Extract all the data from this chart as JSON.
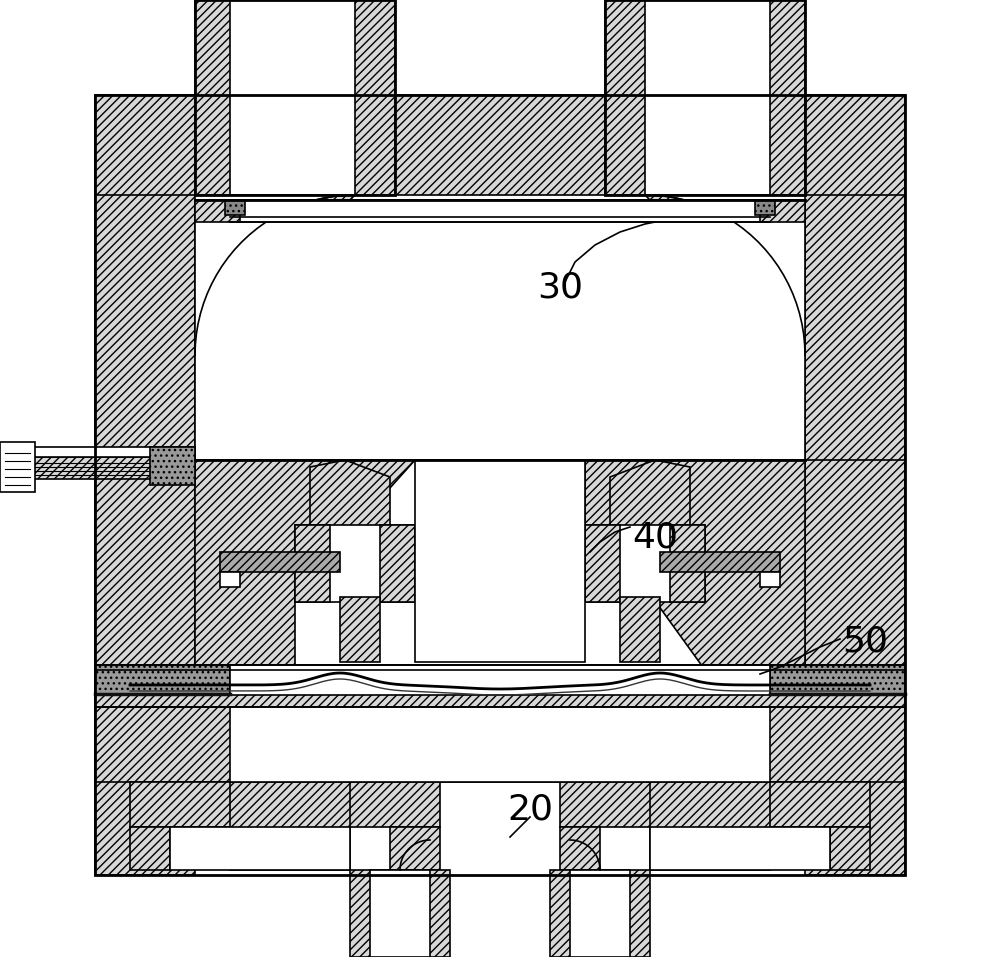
{
  "bg_color": "#ffffff",
  "lc": "#000000",
  "hfc": "#d8d8d8",
  "lw": 1.2,
  "tlw": 2.0,
  "fig_w": 10.0,
  "fig_h": 9.57,
  "label_30": "30",
  "label_40": "40",
  "label_20": "20",
  "label_50": "50"
}
